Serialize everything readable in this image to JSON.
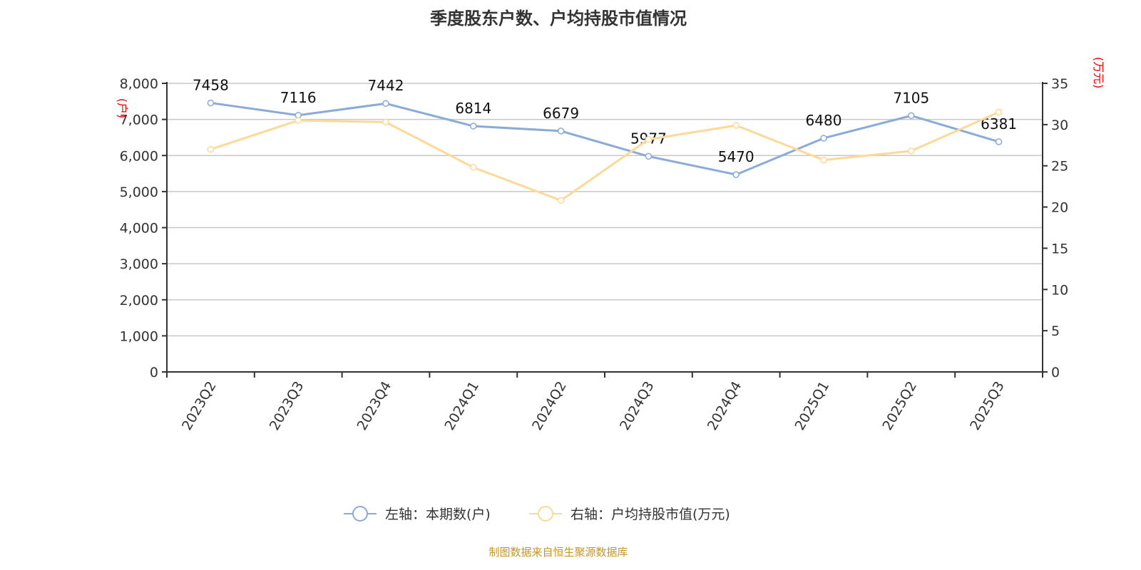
{
  "chart_data": {
    "type": "line",
    "title": "季度股东户数、户均持股市值情况",
    "categories": [
      "2023Q2",
      "2023Q3",
      "2023Q4",
      "2024Q1",
      "2024Q2",
      "2024Q3",
      "2024Q4",
      "2025Q1",
      "2025Q2",
      "2025Q3"
    ],
    "series": [
      {
        "name": "左轴：本期数(户)",
        "axis": "left",
        "color": "#8aaad8",
        "values": [
          7458,
          7116,
          7442,
          6814,
          6679,
          5977,
          5470,
          6480,
          7105,
          6381
        ],
        "data_labels": true
      },
      {
        "name": "右轴：户均持股市值(万元)",
        "axis": "right",
        "color": "#fdd998",
        "values": [
          27.0,
          30.5,
          30.3,
          24.8,
          20.8,
          28.2,
          29.9,
          25.7,
          26.8,
          31.5
        ],
        "data_labels": false
      }
    ],
    "left_axis": {
      "unit": "(户)",
      "range": [
        0,
        8000
      ],
      "ticks": [
        "0",
        "1,000",
        "2,000",
        "3,000",
        "4,000",
        "5,000",
        "6,000",
        "7,000",
        "8,000"
      ]
    },
    "right_axis": {
      "unit": "(万元)",
      "range": [
        0,
        35
      ],
      "ticks": [
        "0",
        "5",
        "10",
        "15",
        "20",
        "25",
        "30",
        "35"
      ]
    },
    "grid": true,
    "legend_position": "bottom",
    "source": "制图数据来自恒生聚源数据库"
  }
}
